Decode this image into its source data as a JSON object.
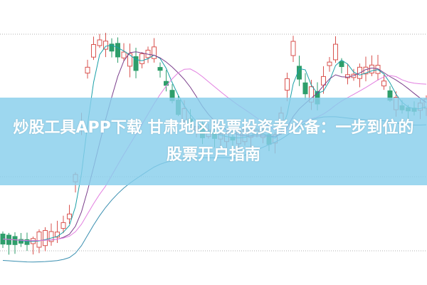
{
  "article": {
    "title": "炒股工具APP下载 甘肃地区股票投资者必备：一步到位的股票开户指南"
  },
  "chart": {
    "type": "candlestick",
    "colors": {
      "up": "#d9534f",
      "down": "#2e9e6b",
      "ma_short": "#1aa0a8",
      "ma_mid": "#7b3f8c",
      "ma_long": "#e27fe0",
      "ma_slow": "#3a8fb0",
      "grid": "#b0b0b0",
      "banner": "#87ceeb"
    }
  }
}
